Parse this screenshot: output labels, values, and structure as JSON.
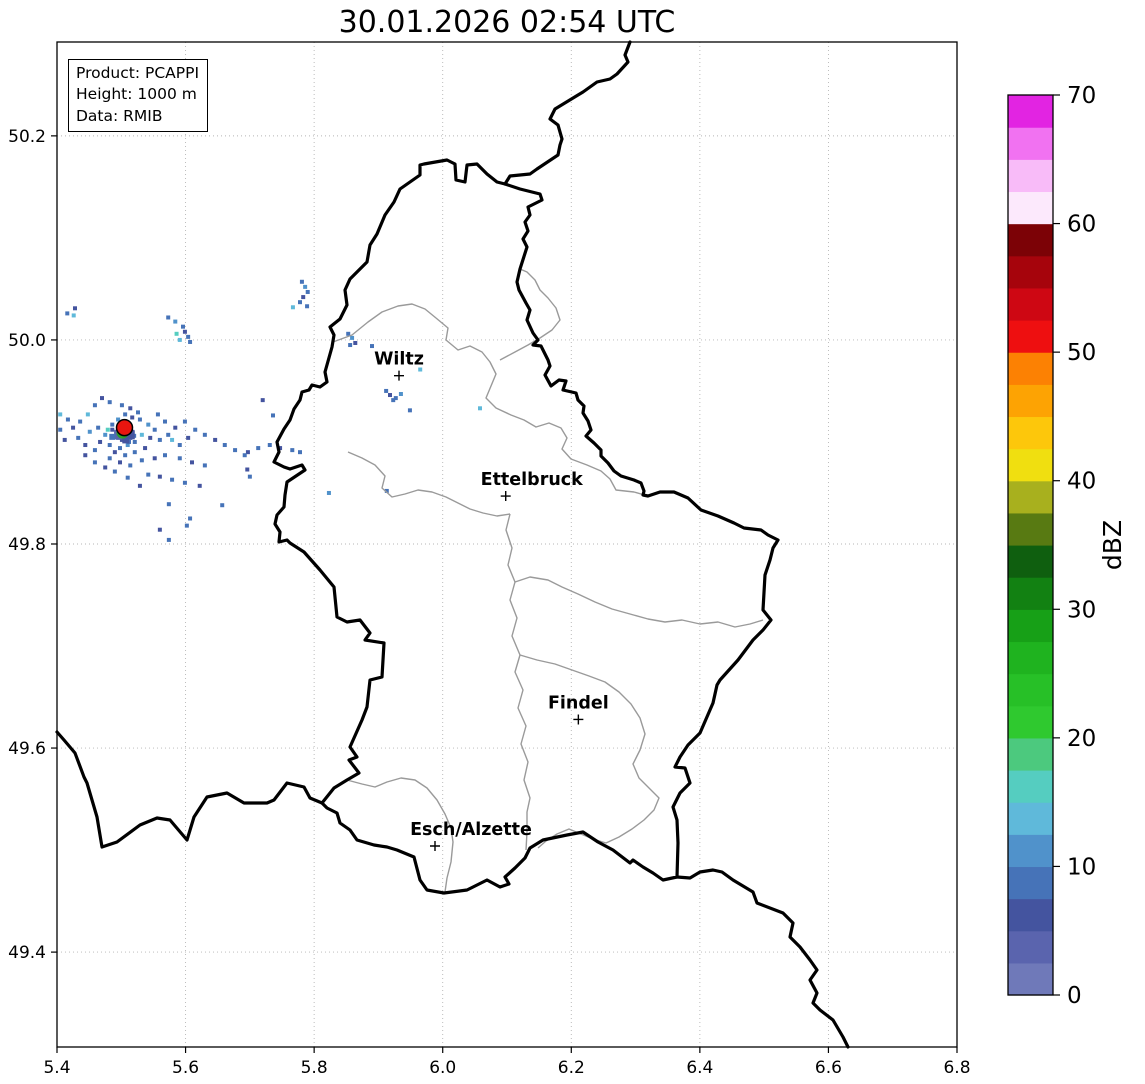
{
  "title": "30.01.2026 02:54 UTC",
  "info_box": {
    "lines": [
      "Product: PCAPPI",
      "Height: 1000 m",
      "Data: RMIB"
    ]
  },
  "chart_data": {
    "type": "heatmap",
    "title": "30.01.2026 02:54 UTC",
    "description": "Weather radar PCAPPI reflectivity map over Luxembourg region",
    "xlabel": "",
    "ylabel": "",
    "xlim": [
      5.4,
      6.8
    ],
    "ylim": [
      49.307,
      50.292
    ],
    "x_ticks": [
      5.4,
      5.6,
      5.8,
      6.0,
      6.2,
      6.4,
      6.6,
      6.8
    ],
    "y_ticks": [
      49.4,
      49.6,
      49.8,
      50.0,
      50.2
    ],
    "grid": "dotted",
    "grid_color": "#b5b5b5",
    "country_border_color": "#000000",
    "district_border_color": "#9a9a9a",
    "colorbar": {
      "label": "dBZ",
      "min": 0,
      "max": 70,
      "segment_step": 2.5,
      "ticks": [
        0,
        10,
        20,
        30,
        40,
        50,
        60,
        70
      ],
      "colors": [
        "#6f79b9",
        "#5a64ae",
        "#44549f",
        "#4673b8",
        "#5092cb",
        "#5fb9da",
        "#55cdc0",
        "#4cc97e",
        "#2fc92f",
        "#27c027",
        "#1fb31f",
        "#17a017",
        "#128112",
        "#0f5f0f",
        "#587a12",
        "#a8b01e",
        "#f0df10",
        "#fdc70b",
        "#fda303",
        "#fc8103",
        "#ee0f10",
        "#ce0713",
        "#a6040c",
        "#7c0206",
        "#fce9fc",
        "#f8bbf8",
        "#f172f1",
        "#e224e2"
      ]
    },
    "radar_site": {
      "lon": 5.505,
      "lat": 49.914,
      "marker_color": "#e8150f"
    },
    "cities": [
      {
        "name": "Wiltz",
        "lon": 5.932,
        "lat": 49.965,
        "label_dx": 0
      },
      {
        "name": "Ettelbruck",
        "lon": 6.098,
        "lat": 49.847,
        "label_dx": 26
      },
      {
        "name": "Findel",
        "lon": 6.211,
        "lat": 49.628,
        "label_dx": 0
      },
      {
        "name": "Esch/Alzette",
        "lon": 5.988,
        "lat": 49.504,
        "label_dx": 36
      }
    ],
    "echo_points": [
      [
        5.459,
        49.936,
        3
      ],
      [
        5.47,
        49.943,
        2
      ],
      [
        5.482,
        49.939,
        3
      ],
      [
        5.448,
        49.927,
        5
      ],
      [
        5.436,
        49.92,
        3
      ],
      [
        5.425,
        49.914,
        2
      ],
      [
        5.417,
        49.922,
        3
      ],
      [
        5.433,
        49.904,
        3
      ],
      [
        5.444,
        49.897,
        2
      ],
      [
        5.459,
        49.892,
        3
      ],
      [
        5.451,
        49.91,
        4
      ],
      [
        5.464,
        49.914,
        3
      ],
      [
        5.475,
        49.907,
        4
      ],
      [
        5.467,
        49.9,
        2
      ],
      [
        5.482,
        49.897,
        3
      ],
      [
        5.479,
        49.912,
        6
      ],
      [
        5.486,
        49.917,
        3
      ],
      [
        5.495,
        49.922,
        4
      ],
      [
        5.506,
        49.927,
        3
      ],
      [
        5.517,
        49.924,
        2
      ],
      [
        5.526,
        49.929,
        3
      ],
      [
        5.514,
        49.933,
        2
      ],
      [
        5.501,
        49.936,
        3
      ],
      [
        5.529,
        49.922,
        3
      ],
      [
        5.542,
        49.917,
        4
      ],
      [
        5.552,
        49.912,
        3
      ],
      [
        5.545,
        49.904,
        2
      ],
      [
        5.532,
        49.907,
        5
      ],
      [
        5.521,
        49.9,
        3
      ],
      [
        5.51,
        49.897,
        4
      ],
      [
        5.498,
        49.894,
        3
      ],
      [
        5.49,
        49.89,
        2
      ],
      [
        5.506,
        49.887,
        3
      ],
      [
        5.521,
        49.89,
        3
      ],
      [
        5.537,
        49.894,
        2
      ],
      [
        5.56,
        49.902,
        3
      ],
      [
        5.573,
        49.907,
        3
      ],
      [
        5.584,
        49.914,
        2
      ],
      [
        5.568,
        49.92,
        3
      ],
      [
        5.557,
        49.927,
        3
      ],
      [
        5.579,
        49.902,
        5
      ],
      [
        5.591,
        49.897,
        3
      ],
      [
        5.604,
        49.904,
        2
      ],
      [
        5.615,
        49.912,
        3
      ],
      [
        5.599,
        49.92,
        3
      ],
      [
        5.63,
        49.907,
        3
      ],
      [
        5.646,
        49.902,
        2
      ],
      [
        5.661,
        49.897,
        3
      ],
      [
        5.677,
        49.892,
        3
      ],
      [
        5.697,
        49.89,
        2
      ],
      [
        5.713,
        49.894,
        3
      ],
      [
        5.731,
        49.897,
        3
      ],
      [
        5.747,
        49.894,
        2
      ],
      [
        5.766,
        49.892,
        3
      ],
      [
        5.778,
        49.89,
        3
      ],
      [
        5.405,
        49.912,
        3
      ],
      [
        5.412,
        49.902,
        2
      ],
      [
        5.405,
        49.927,
        5
      ],
      [
        5.482,
        49.884,
        3
      ],
      [
        5.498,
        49.88,
        2
      ],
      [
        5.514,
        49.877,
        3
      ],
      [
        5.532,
        49.882,
        3
      ],
      [
        5.552,
        49.884,
        2
      ],
      [
        5.568,
        49.887,
        3
      ],
      [
        5.591,
        49.884,
        3
      ],
      [
        5.61,
        49.88,
        2
      ],
      [
        5.63,
        49.877,
        3
      ],
      [
        5.542,
        49.868,
        3
      ],
      [
        5.56,
        49.866,
        2
      ],
      [
        5.579,
        49.863,
        3
      ],
      [
        5.599,
        49.86,
        3
      ],
      [
        5.529,
        49.857,
        2
      ],
      [
        5.51,
        49.865,
        3
      ],
      [
        5.49,
        49.871,
        3
      ],
      [
        5.475,
        49.875,
        2
      ],
      [
        5.459,
        49.88,
        3
      ],
      [
        5.444,
        49.887,
        2
      ],
      [
        5.486,
        49.912,
        2
      ],
      [
        5.492,
        49.91,
        1
      ],
      [
        5.498,
        49.908,
        2
      ],
      [
        5.504,
        49.906,
        1
      ],
      [
        5.51,
        49.908,
        2
      ],
      [
        5.517,
        49.91,
        2
      ],
      [
        5.495,
        49.904,
        1
      ],
      [
        5.501,
        49.902,
        2
      ],
      [
        5.507,
        49.904,
        1
      ],
      [
        5.514,
        49.904,
        2
      ],
      [
        5.52,
        49.906,
        3
      ],
      [
        5.5,
        49.909,
        8
      ],
      [
        5.512,
        49.9,
        3
      ],
      [
        5.496,
        49.907,
        1,
        9
      ],
      [
        5.505,
        49.907,
        1,
        9
      ],
      [
        5.514,
        49.907,
        2,
        9
      ],
      [
        5.507,
        49.902,
        2,
        7
      ],
      [
        5.486,
        49.905,
        3,
        6
      ],
      [
        5.416,
        50.026,
        3
      ],
      [
        5.426,
        50.024,
        5
      ],
      [
        5.428,
        50.031,
        2
      ],
      [
        5.573,
        50.022,
        3
      ],
      [
        5.584,
        50.018,
        4
      ],
      [
        5.596,
        50.013,
        3
      ],
      [
        5.599,
        50.008,
        2
      ],
      [
        5.604,
        50.003,
        3
      ],
      [
        5.591,
        50.0,
        5
      ],
      [
        5.607,
        49.998,
        3
      ],
      [
        5.586,
        50.006,
        6
      ],
      [
        5.781,
        50.057,
        3
      ],
      [
        5.786,
        50.052,
        4
      ],
      [
        5.79,
        50.047,
        3
      ],
      [
        5.783,
        50.042,
        2
      ],
      [
        5.778,
        50.037,
        3
      ],
      [
        5.789,
        50.033,
        3
      ],
      [
        5.767,
        50.032,
        5
      ],
      [
        5.853,
        50.006,
        3
      ],
      [
        5.859,
        50.002,
        4
      ],
      [
        5.864,
        49.997,
        2
      ],
      [
        5.856,
        49.995,
        3
      ],
      [
        5.89,
        49.994,
        3
      ],
      [
        5.912,
        49.95,
        3
      ],
      [
        5.918,
        49.946,
        2
      ],
      [
        5.927,
        49.943,
        3
      ],
      [
        5.935,
        49.947,
        4
      ],
      [
        5.923,
        49.941,
        3
      ],
      [
        5.965,
        49.971,
        5
      ],
      [
        5.72,
        49.941,
        2
      ],
      [
        5.736,
        49.926,
        3
      ],
      [
        5.692,
        49.887,
        3
      ],
      [
        5.696,
        49.873,
        2
      ],
      [
        5.7,
        49.866,
        3
      ],
      [
        5.823,
        49.85,
        4
      ],
      [
        5.913,
        49.852,
        3
      ],
      [
        5.949,
        49.931,
        3
      ],
      [
        6.058,
        49.933,
        5
      ],
      [
        5.607,
        49.825,
        3
      ],
      [
        5.622,
        49.857,
        2
      ],
      [
        5.574,
        49.839,
        3
      ],
      [
        5.657,
        49.838,
        3
      ],
      [
        5.56,
        49.814,
        2
      ],
      [
        5.602,
        49.818,
        3
      ],
      [
        5.574,
        49.804,
        3
      ]
    ],
    "map_borders": {
      "country_paths": [
        "M448,142 L463,147 L483,152 L485,158 L471,165 L473,173 L468,180 L471,189 L466,197 L470,205 L463,227 L460,240 L462,248 L469,261 L473,268 L470,278 L476,291 L481,298 L476,303 L484,304 L491,318 L493,324 L488,333 L494,344 L502,338 L509,339 L506,348 L519,351 L521,358 L527,364 L526,371 L531,379 L534,388 L529,394 L537,401 L544,408 L544,414 L551,421 L557,429 L564,434 L577,438 L584,441 L587,449 L586,453 L591,454 L603,450 L617,450 L631,456 L644,468 L661,474 L677,481 L687,486 L704,488 L711,493 L721,498 L716,506 L713,518 L708,533 L706,568 L714,578 L706,588 L696,598 L681,618 L663,638 L660,643 L656,661 L643,691 L631,703 L623,715 L618,725 L628,726 L633,741 L623,751 L616,765 L620,778 L621,801 L620,835 L606,838 L596,831 L586,825 L576,818 L573,821 L556,808 L541,800 L526,790 L510,793 L486,798 L473,806 L468,816 L458,826 L448,835 L452,842 L443,845 L430,838 L410,848 L387,851 L370,848 L363,838 L357,815 L340,808 L330,805 L317,803 L300,798 L293,788 L283,781 L280,771 L270,766 L265,761 L277,746 L290,738 L302,731 L292,718 L300,715 L293,705 L305,678 L310,665 L313,638 L325,635 L327,601 L308,598 L313,591 L303,578 L290,580 L280,575 L277,545 L263,528 L247,510 L233,501 L230,498 L222,500 L223,490 L218,482 L220,473 L227,465 L228,453 L230,440 L248,428 L245,423 L233,427 L227,425 L217,420 L222,410 L220,400 L227,387 L233,378 L237,367 L243,358 L245,350 L252,348 L255,343 L263,345 L270,340 L268,330 L275,305 L277,293 L273,285 L283,277 L290,263 L288,248 L293,237 L300,230 L310,220 L313,203 L320,192 L328,173 L337,160 L343,147 L363,133 L363,123 L367,122 L390,118 L398,122 L399,138 L408,140 L410,123 L420,122 L430,132 L440,140 Z",
        "M573,0 L568,13 L571,20 L560,32 L553,37 L540,40 L526,50 L521,53 L498,67 L493,77 L501,83 L505,97 L503,103 L501,113 L480,127 L473,132 L453,134 L448,142",
        "M0,690 L7,698 L18,711 L27,735 L30,741 L40,775 L45,805 L60,800 L83,783 L100,776 L113,778 L130,798 L137,775 L150,755 L170,751 L187,761 L210,761 L217,758 L230,741 L247,745 L253,756 L265,761",
        "M620,835 L633,836 L643,830 L656,828 L665,830 L676,838 L696,850 L700,861 L726,871 L736,881 L733,895 L743,905 L753,918 L760,928 L753,938 L760,951 L756,961 L763,968 L776,978 L786,995 L791,1005"
      ],
      "district_paths": [
        "M276,300 L295,293 L311,280 L325,270 L341,264 L355,262 L368,267 L379,276 L391,286 L389,298 L401,308 L413,304 L425,310 L433,320 L439,332 L434,344 L429,356 L439,366 L454,373 L467,378 L479,385 L492,381 L504,386 L510,396 L505,407 L514,417 L530,423 L544,429 L553,437 L559,448 L577,450 L591,454",
        "M291,410 L305,416 L318,423 L328,434 L325,446 L335,455 L348,452 L361,448 L375,450 L389,455 L401,461 L413,467 L426,471 L440,474 L453,472",
        "M453,472 L449,488 L455,506 L451,523 L458,540 L453,558 L460,576 L455,594 L463,613 L458,630 L466,648 L461,666 L469,684 L464,702 L471,720 L467,738 L473,756 L470,770 L470,790 L469,808",
        "M458,540 L473,535 L491,538 L505,545 L521,552 L538,560 L555,567 L573,572 L591,577 L608,580 L625,578 L643,582 L661,580 L678,585 L693,582 L706,578",
        "M463,613 L480,618 L498,622 L515,628 L532,634 L548,640 L562,650 L574,662 L583,676 L588,692 L583,708 L576,722 L582,736 L592,746 L602,756 L597,768 L587,778 L575,787 L562,795 L549,801 L536,797 L524,792 L512,787 L500,792 L489,799 L481,806",
        "M290,738 L305,742 L318,745 L330,740 L344,736 L358,738 L370,746 L380,758 L388,772 L394,786 L396,800 L394,820 L390,836 L388,850",
        "M443,318 L458,310 L471,303 L483,296 L495,288 L503,278 L499,266 L491,256 L483,248 L478,238 L470,230 L463,227"
      ]
    }
  }
}
